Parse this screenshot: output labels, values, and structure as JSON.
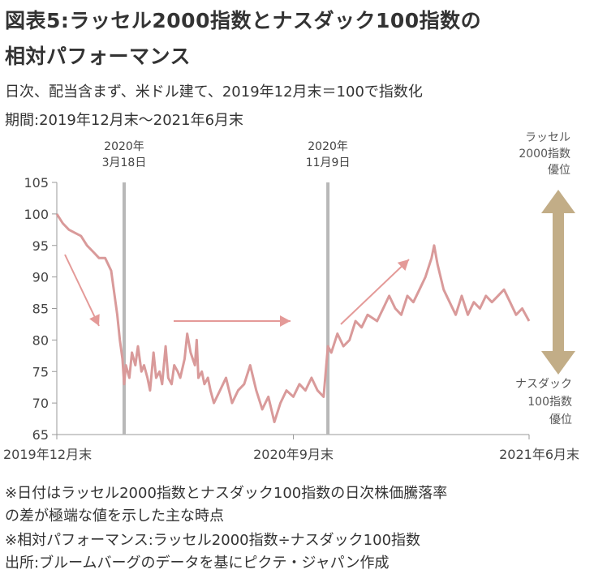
{
  "header": {
    "title_line1": "図表5:ラッセル2000指数とナスダック100指数の",
    "title_line2": "相対パフォーマンス",
    "subtitle_line1": "日次、配当含まず、米ドル建て、2019年12月末＝100で指数化",
    "subtitle_line2": "期間:2019年12月末〜2021年6月末"
  },
  "footnotes": {
    "note1": "※日付はラッセル2000指数とナスダック100指数の日次株価騰落率",
    "note2": "の差が極端な値を示した主な時点",
    "note3": "※相対パフォーマンス:ラッセル2000指数÷ナスダック100指数",
    "note4": "出所:ブルームバーグのデータを基にピクテ・ジャパン作成"
  },
  "colors": {
    "line": "#d99a9a",
    "arrow": "#e49a98",
    "vline": "#b8b8b8",
    "side_arrow": "#c2ad87",
    "axis": "#999999"
  },
  "chart_data": {
    "type": "line",
    "ylim": [
      65,
      105
    ],
    "y_ticks": [
      "105",
      "100",
      "95",
      "90",
      "85",
      "80",
      "75",
      "70",
      "65"
    ],
    "x_tick_labels": [
      "2019年12月末",
      "2020年9月末",
      "2021年6月末"
    ],
    "x_ticks": [
      "2019-12-31",
      "2020-09-30",
      "2021-06-30"
    ],
    "xlim": [
      "2019-12-31",
      "2021-06-30"
    ],
    "events": [
      {
        "date": "2020-03-18",
        "label_year": "2020年",
        "label_day": "3月18日"
      },
      {
        "date": "2020-11-09",
        "label_year": "2020年",
        "label_day": "11月9日"
      }
    ],
    "side_labels": {
      "top": [
        "ラッセル",
        "2000指数",
        "優位"
      ],
      "bottom": [
        "ナスダック",
        "100指数",
        "優位"
      ]
    },
    "series": [
      {
        "x": [
          "2019-12-31",
          "2020-01-07",
          "2020-01-14",
          "2020-01-21",
          "2020-01-28",
          "2020-02-04",
          "2020-02-11",
          "2020-02-18",
          "2020-02-25",
          "2020-03-03",
          "2020-03-06",
          "2020-03-10",
          "2020-03-13",
          "2020-03-16",
          "2020-03-18",
          "2020-03-20",
          "2020-03-24",
          "2020-03-27",
          "2020-03-31",
          "2020-04-03",
          "2020-04-07",
          "2020-04-10",
          "2020-04-14",
          "2020-04-17",
          "2020-04-21",
          "2020-04-24",
          "2020-04-28",
          "2020-05-01",
          "2020-05-05",
          "2020-05-08",
          "2020-05-12",
          "2020-05-15",
          "2020-05-19",
          "2020-05-22",
          "2020-05-27",
          "2020-05-30",
          "2020-06-03",
          "2020-06-08",
          "2020-06-10",
          "2020-06-12",
          "2020-06-16",
          "2020-06-19",
          "2020-06-23",
          "2020-06-26",
          "2020-06-30",
          "2020-07-07",
          "2020-07-14",
          "2020-07-21",
          "2020-07-28",
          "2020-08-04",
          "2020-08-11",
          "2020-08-18",
          "2020-08-25",
          "2020-09-01",
          "2020-09-08",
          "2020-09-15",
          "2020-09-22",
          "2020-09-30",
          "2020-10-07",
          "2020-10-14",
          "2020-10-21",
          "2020-10-28",
          "2020-11-04",
          "2020-11-09",
          "2020-11-13",
          "2020-11-20",
          "2020-11-27",
          "2020-12-04",
          "2020-12-11",
          "2020-12-18",
          "2020-12-25",
          "2021-01-05",
          "2021-01-12",
          "2021-01-19",
          "2021-01-26",
          "2021-02-02",
          "2021-02-09",
          "2021-02-16",
          "2021-02-23",
          "2021-03-02",
          "2021-03-09",
          "2021-03-12",
          "2021-03-16",
          "2021-03-23",
          "2021-03-30",
          "2021-04-06",
          "2021-04-13",
          "2021-04-20",
          "2021-04-27",
          "2021-05-04",
          "2021-05-11",
          "2021-05-18",
          "2021-05-25",
          "2021-06-01",
          "2021-06-08",
          "2021-06-15",
          "2021-06-22",
          "2021-06-30"
        ],
        "y": [
          100,
          98.5,
          97.5,
          97,
          96.5,
          95,
          94,
          93,
          93,
          91,
          88,
          84,
          80,
          77,
          73,
          76,
          74,
          78,
          76,
          79,
          75,
          76,
          74,
          72,
          78,
          74,
          75,
          73,
          79,
          74,
          73,
          76,
          75,
          74,
          77,
          81,
          78,
          76,
          80,
          74,
          75,
          73,
          74,
          72,
          70,
          72,
          74,
          70,
          72,
          73,
          76,
          72,
          69,
          71,
          67,
          70,
          72,
          71,
          73,
          72,
          74,
          72,
          71,
          79,
          78,
          81,
          79,
          80,
          83,
          82,
          84,
          83,
          85,
          87,
          85,
          84,
          87,
          86,
          88,
          90,
          93,
          95,
          92,
          88,
          86,
          84,
          87,
          84,
          86,
          85,
          87,
          86,
          87,
          88,
          86,
          84,
          85,
          83
        ]
      }
    ]
  }
}
